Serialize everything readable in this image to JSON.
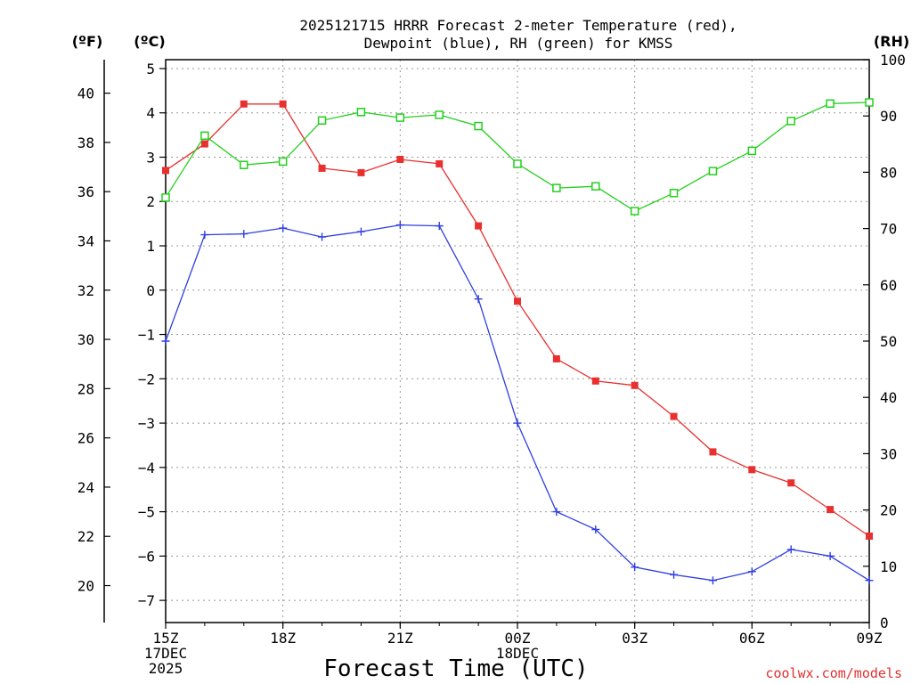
{
  "chart_data": {
    "type": "line",
    "title_lines": [
      "2025121715 HRRR Forecast 2-meter Temperature (red),",
      "Dewpoint (blue), RH (green) for KMSS"
    ],
    "units": {
      "fahrenheit": "(ºF)",
      "celsius": "(ºC)",
      "rh": "(RH)"
    },
    "xlabel": "Forecast Time (UTC)",
    "credit": "coolwx.com/models",
    "x_hours": [
      0,
      1,
      2,
      3,
      4,
      5,
      6,
      7,
      8,
      9,
      10,
      11,
      12,
      13,
      14,
      15,
      16,
      17,
      18
    ],
    "x_ticks": [
      {
        "hour": 0,
        "lines": [
          "15Z",
          "17DEC",
          "2025"
        ]
      },
      {
        "hour": 3,
        "lines": [
          "18Z"
        ]
      },
      {
        "hour": 6,
        "lines": [
          "21Z"
        ]
      },
      {
        "hour": 9,
        "lines": [
          "00Z",
          "18DEC"
        ]
      },
      {
        "hour": 12,
        "lines": [
          "03Z"
        ]
      },
      {
        "hour": 15,
        "lines": [
          "06Z"
        ]
      },
      {
        "hour": 18,
        "lines": [
          "09Z"
        ]
      }
    ],
    "celsius_axis": {
      "range": [
        -7.5,
        5.2
      ],
      "ticks": [
        5,
        4,
        3,
        2,
        1,
        0,
        -1,
        -2,
        -3,
        -4,
        -5,
        -6,
        -7
      ]
    },
    "fahrenheit_axis": {
      "ticks": [
        40,
        38,
        36,
        34,
        32,
        30,
        28,
        26,
        24,
        22,
        20
      ]
    },
    "rh_axis": {
      "range": [
        0,
        100
      ],
      "ticks": [
        100,
        90,
        80,
        70,
        60,
        50,
        40,
        30,
        20,
        10,
        0
      ]
    },
    "series": [
      {
        "name": "2-meter Temperature",
        "units": "C",
        "axis": "celsius",
        "color": "#e8302f",
        "marker": "filled-square",
        "values": [
          2.7,
          3.3,
          4.2,
          4.2,
          2.75,
          2.65,
          2.95,
          2.85,
          1.45,
          -0.25,
          -1.55,
          -2.05,
          -2.15,
          -2.85,
          -3.65,
          -4.05,
          -4.35,
          -4.95,
          -5.55
        ]
      },
      {
        "name": "Dewpoint",
        "units": "C",
        "axis": "celsius",
        "color": "#2f3fe0",
        "marker": "plus",
        "values": [
          -1.15,
          1.25,
          1.27,
          1.4,
          1.2,
          1.32,
          1.47,
          1.45,
          -0.2,
          -3.0,
          -5.0,
          -5.4,
          -6.25,
          -6.42,
          -6.55,
          -6.35,
          -5.85,
          -6.0,
          -6.55
        ]
      },
      {
        "name": "RH",
        "units": "%",
        "axis": "rh",
        "color": "#23d01d",
        "marker": "open-square",
        "values": [
          75.5,
          86.5,
          81.3,
          81.9,
          89.2,
          90.7,
          89.7,
          90.2,
          88.2,
          81.5,
          77.2,
          77.5,
          73.1,
          76.3,
          80.2,
          83.8,
          89.1,
          92.2,
          92.4
        ]
      }
    ]
  }
}
